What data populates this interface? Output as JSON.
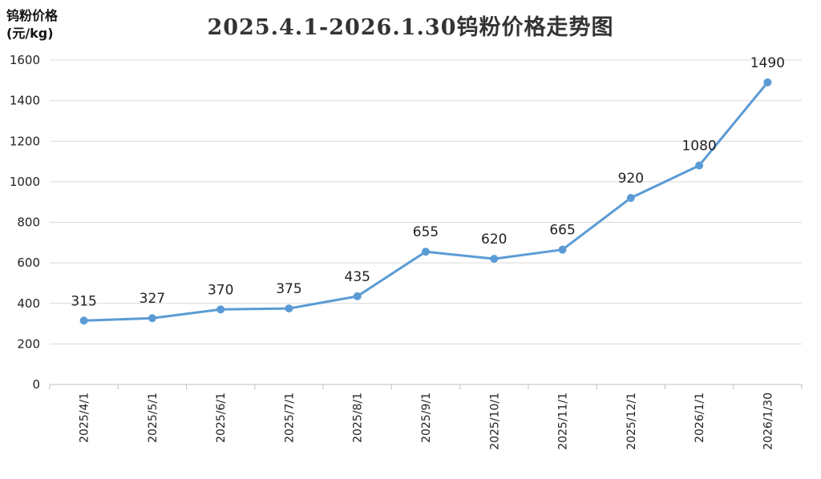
{
  "chart_data": {
    "type": "line",
    "title": "2025.4.1-2026.1.30钨粉价格走势图",
    "ylabel_line1": "钨粉价格",
    "ylabel_line2": "(元/kg)",
    "xlabel": "",
    "categories": [
      "2025/4/1",
      "2025/5/1",
      "2025/6/1",
      "2025/7/1",
      "2025/8/1",
      "2025/9/1",
      "2025/10/1",
      "2025/11/1",
      "2025/12/1",
      "2026/1/1",
      "2026/1/30"
    ],
    "series": [
      {
        "values": [
          315,
          327,
          370,
          375,
          435,
          655,
          620,
          665,
          920,
          1080,
          1490
        ],
        "color": "#5b9bd5"
      }
    ],
    "ylim": [
      0,
      1600
    ],
    "yticks": [
      0,
      200,
      400,
      600,
      800,
      1000,
      1200,
      1400,
      1600
    ],
    "grid": true,
    "data_labels": true
  }
}
